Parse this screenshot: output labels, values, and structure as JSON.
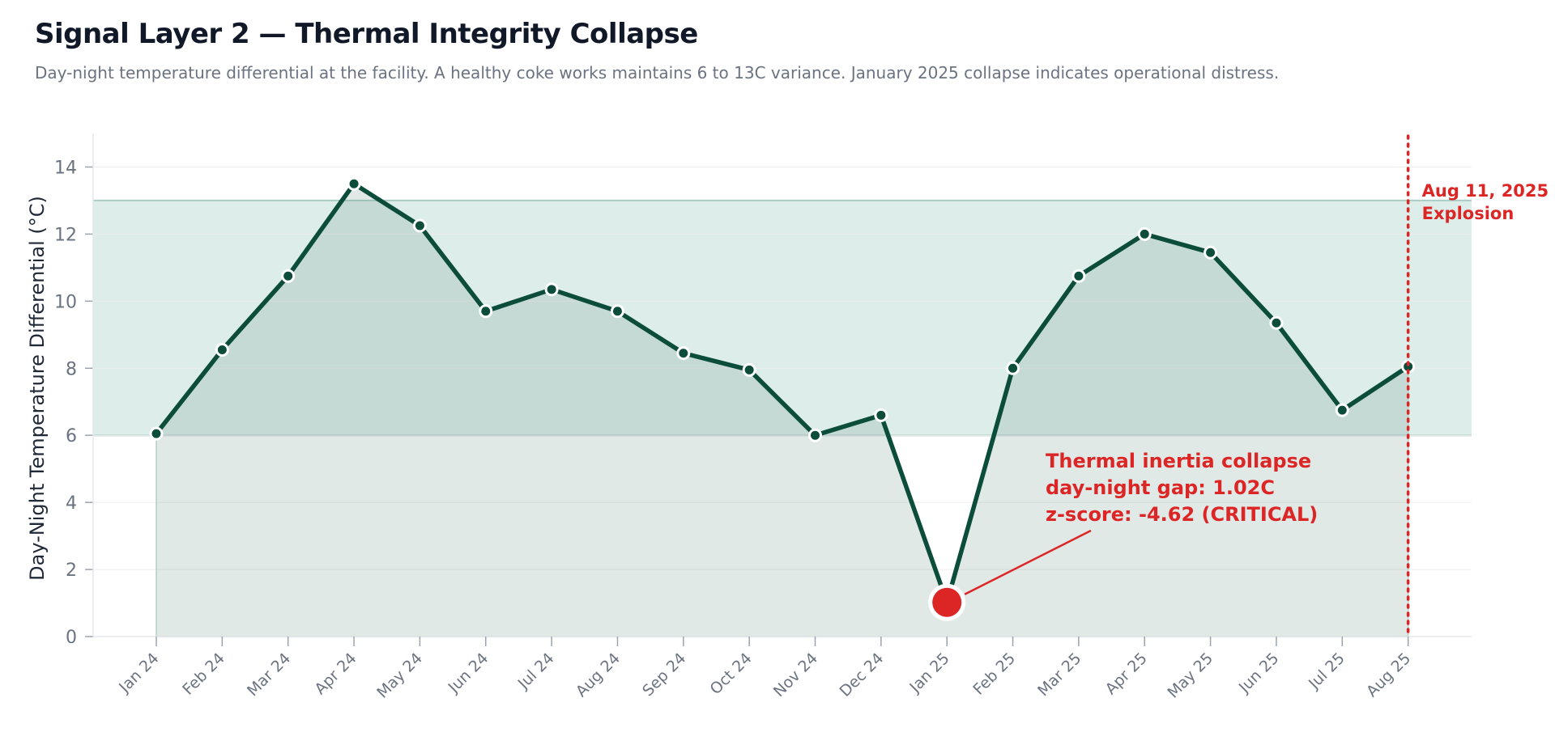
{
  "header": {
    "title": "Signal Layer 2 — Thermal Integrity Collapse",
    "subtitle": "Day-night temperature differential at the facility. A healthy coke works maintains 6 to 13C variance. January 2025 collapse indicates operational distress."
  },
  "chart_data": {
    "type": "line",
    "title": "Signal Layer 2 — Thermal Integrity Collapse",
    "xlabel": "",
    "ylabel": "Day-Night Temperature Differential (°C)",
    "ylim": [
      0,
      15
    ],
    "yticks": [
      0,
      2,
      4,
      6,
      8,
      10,
      12,
      14
    ],
    "grid": "horizontal",
    "categories": [
      "Jan 24",
      "Feb 24",
      "Mar 24",
      "Apr 24",
      "May 24",
      "Jun 24",
      "Jul 24",
      "Aug 24",
      "Sep 24",
      "Oct 24",
      "Nov 24",
      "Dec 24",
      "Jan 25",
      "Feb 25",
      "Mar 25",
      "Apr 25",
      "May 25",
      "Jun 25",
      "Jul 25",
      "Aug 25"
    ],
    "series": [
      {
        "values": [
          6.05,
          8.55,
          10.75,
          13.5,
          12.25,
          9.7,
          10.35,
          9.7,
          8.45,
          7.95,
          6.0,
          6.6,
          1.02,
          8.0,
          10.75,
          12.0,
          11.45,
          9.35,
          6.75,
          8.05
        ],
        "color": "#0b4d3a"
      }
    ],
    "healthy_band": {
      "low": 6,
      "high": 13,
      "color": "#cfe5df"
    },
    "highlight": {
      "category": "Jan 25",
      "value": 1.02,
      "color": "#dc2626"
    },
    "annotation": {
      "lines": [
        "Thermal inertia collapse",
        "day-night gap: 1.02C",
        "z-score: -4.62  (CRITICAL)"
      ],
      "color": "#dc2626"
    },
    "event_line": {
      "category": "Aug 25",
      "lines": [
        "Aug 11, 2025",
        "Explosion"
      ],
      "color": "#dc2626"
    }
  }
}
